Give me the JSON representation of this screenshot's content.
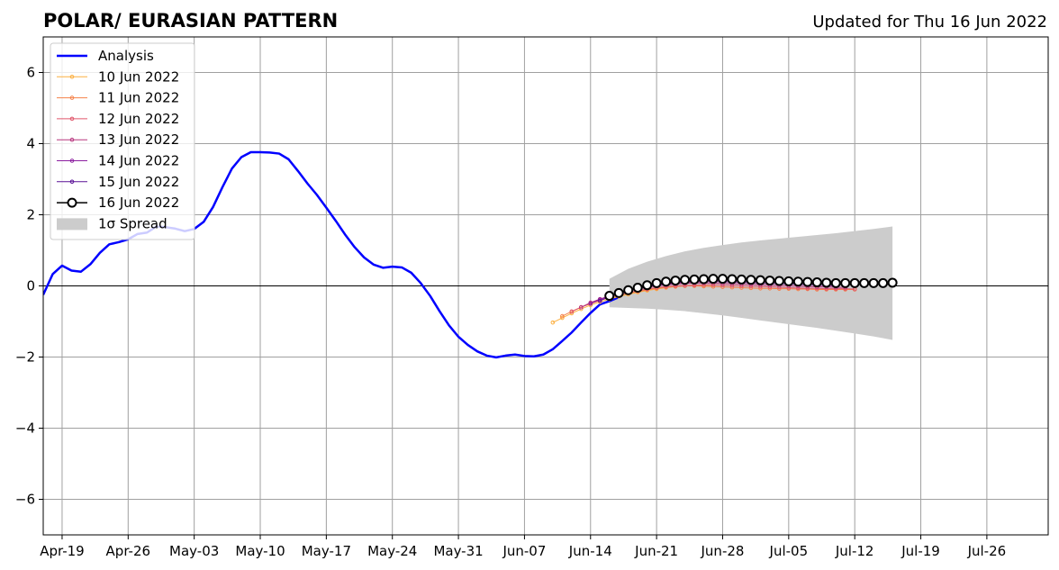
{
  "chart_data": {
    "type": "line",
    "title": "POLAR/ EURASIAN  PATTERN",
    "updated": "Updated for Thu 16 Jun 2022",
    "xlabel": "",
    "ylabel": "",
    "x_range_days": [
      -2,
      104.5
    ],
    "x_epoch": "2022-04-19",
    "ylim": [
      -7,
      7
    ],
    "x_tick_days": [
      0,
      7,
      14,
      21,
      28,
      35,
      42,
      49,
      56,
      63,
      70,
      77,
      84,
      91,
      98
    ],
    "x_tick_labels": [
      "Apr-19",
      "Apr-26",
      "May-03",
      "May-10",
      "May-17",
      "May-24",
      "May-31",
      "Jun-07",
      "Jun-14",
      "Jun-21",
      "Jun-28",
      "Jul-05",
      "Jul-12",
      "Jul-19",
      "Jul-26"
    ],
    "y_ticks": [
      -6,
      -4,
      -2,
      0,
      2,
      4,
      6
    ],
    "y_tick_labels": [
      "−6",
      "−4",
      "−2",
      "0",
      "2",
      "4",
      "6"
    ],
    "grid": true,
    "legend_position": "top-left",
    "analysis": {
      "name": "Analysis",
      "color": "#0000ff",
      "x_start": -2,
      "values": [
        -0.25,
        0.33,
        0.57,
        0.43,
        0.4,
        0.61,
        0.93,
        1.17,
        1.23,
        1.31,
        1.46,
        1.5,
        1.67,
        1.65,
        1.61,
        1.54,
        1.6,
        1.8,
        2.22,
        2.78,
        3.3,
        3.62,
        3.76,
        3.76,
        3.75,
        3.72,
        3.56,
        3.23,
        2.88,
        2.56,
        2.2,
        1.83,
        1.44,
        1.09,
        0.8,
        0.6,
        0.51,
        0.54,
        0.52,
        0.37,
        0.08,
        -0.28,
        -0.71,
        -1.11,
        -1.43,
        -1.66,
        -1.84,
        -1.96,
        -2.01,
        -1.96,
        -1.93,
        -1.97,
        -1.98,
        -1.93,
        -1.78,
        -1.55,
        -1.31,
        -1.03,
        -0.76,
        -0.52,
        -0.43,
        -0.32
      ]
    },
    "forecasts": [
      {
        "name": "10 Jun 2022",
        "color": "#fcb040",
        "x_start": 52,
        "values": [
          -1.03,
          -0.9,
          -0.77,
          -0.65,
          -0.54,
          -0.45,
          -0.37,
          -0.3,
          -0.24,
          -0.18,
          -0.13,
          -0.09,
          -0.05,
          -0.02,
          0.0,
          0.01,
          0.02,
          0.02
        ]
      },
      {
        "name": "11 Jun 2022",
        "color": "#f5824a",
        "x_start": 53,
        "values": [
          -0.85,
          -0.72,
          -0.6,
          -0.5,
          -0.41,
          -0.33,
          -0.27,
          -0.21,
          -0.16,
          -0.11,
          -0.07,
          -0.04,
          -0.02,
          0.0,
          0.0,
          -0.01,
          -0.02,
          -0.03,
          -0.04,
          -0.05,
          -0.06,
          -0.07,
          -0.07,
          -0.08,
          -0.08,
          -0.09,
          -0.09,
          -0.1,
          -0.1,
          -0.1,
          -0.1,
          -0.1
        ]
      },
      {
        "name": "12 Jun 2022",
        "color": "#e0566b",
        "x_start": 54,
        "values": [
          -0.72,
          -0.6,
          -0.49,
          -0.4,
          -0.32,
          -0.25,
          -0.19,
          -0.14,
          -0.09,
          -0.05,
          -0.02,
          0.0,
          0.01,
          0.02,
          0.03,
          0.03,
          0.02,
          0.01,
          0.0,
          -0.01,
          -0.02,
          -0.03,
          -0.04,
          -0.05,
          -0.06,
          -0.07,
          -0.07,
          -0.08,
          -0.08,
          -0.08,
          -0.09
        ]
      },
      {
        "name": "13 Jun 2022",
        "color": "#b8377f",
        "x_start": 55,
        "values": [
          -0.6,
          -0.47,
          -0.37,
          -0.28,
          -0.21,
          -0.14,
          -0.09,
          -0.04,
          0.0,
          0.03,
          0.05,
          0.07,
          0.08,
          0.08,
          0.08,
          0.07,
          0.06,
          0.05,
          0.04,
          0.03,
          0.02,
          0.01,
          0.0,
          -0.01,
          -0.02,
          -0.03,
          -0.03,
          -0.04,
          -0.04
        ]
      },
      {
        "name": "14 Jun 2022",
        "color": "#8c1fa0",
        "x_start": 56,
        "values": [
          -0.5,
          -0.38,
          -0.29,
          -0.2,
          -0.13,
          -0.07,
          -0.02,
          0.02,
          0.05,
          0.08,
          0.1,
          0.11,
          0.12,
          0.12,
          0.12,
          0.11,
          0.1,
          0.09,
          0.08,
          0.07,
          0.06,
          0.05,
          0.04,
          0.03,
          0.02,
          0.01,
          0.0
        ]
      },
      {
        "name": "15 Jun 2022",
        "color": "#5a1096",
        "x_start": 57,
        "values": [
          -0.42,
          -0.3,
          -0.21,
          -0.13,
          -0.06,
          -0.01,
          0.04,
          0.07,
          0.1,
          0.12,
          0.14,
          0.15,
          0.16,
          0.16,
          0.16,
          0.15,
          0.14,
          0.13,
          0.12,
          0.11,
          0.1,
          0.09,
          0.08,
          0.07,
          0.06,
          0.05
        ]
      },
      {
        "name": "16 Jun 2022",
        "color": "#000000",
        "x_start": 58,
        "values": [
          -0.28,
          -0.2,
          -0.12,
          -0.05,
          0.02,
          0.08,
          0.12,
          0.15,
          0.17,
          0.18,
          0.19,
          0.2,
          0.2,
          0.19,
          0.18,
          0.17,
          0.16,
          0.15,
          0.14,
          0.13,
          0.12,
          0.11,
          0.1,
          0.09,
          0.08,
          0.08,
          0.08,
          0.08,
          0.08,
          0.08,
          0.09
        ]
      }
    ],
    "spread": {
      "name": "1σ Spread",
      "color": "#cccccc",
      "x": [
        58,
        60,
        62,
        64,
        66,
        68,
        70,
        72,
        74,
        76,
        78,
        80,
        82,
        84,
        86,
        88
      ],
      "upper": [
        0.2,
        0.48,
        0.68,
        0.84,
        0.97,
        1.07,
        1.15,
        1.22,
        1.28,
        1.33,
        1.38,
        1.43,
        1.48,
        1.54,
        1.6,
        1.67
      ],
      "lower": [
        -0.6,
        -0.62,
        -0.64,
        -0.67,
        -0.71,
        -0.77,
        -0.83,
        -0.9,
        -0.97,
        -1.04,
        -1.11,
        -1.18,
        -1.26,
        -1.34,
        -1.42,
        -1.52
      ]
    }
  }
}
